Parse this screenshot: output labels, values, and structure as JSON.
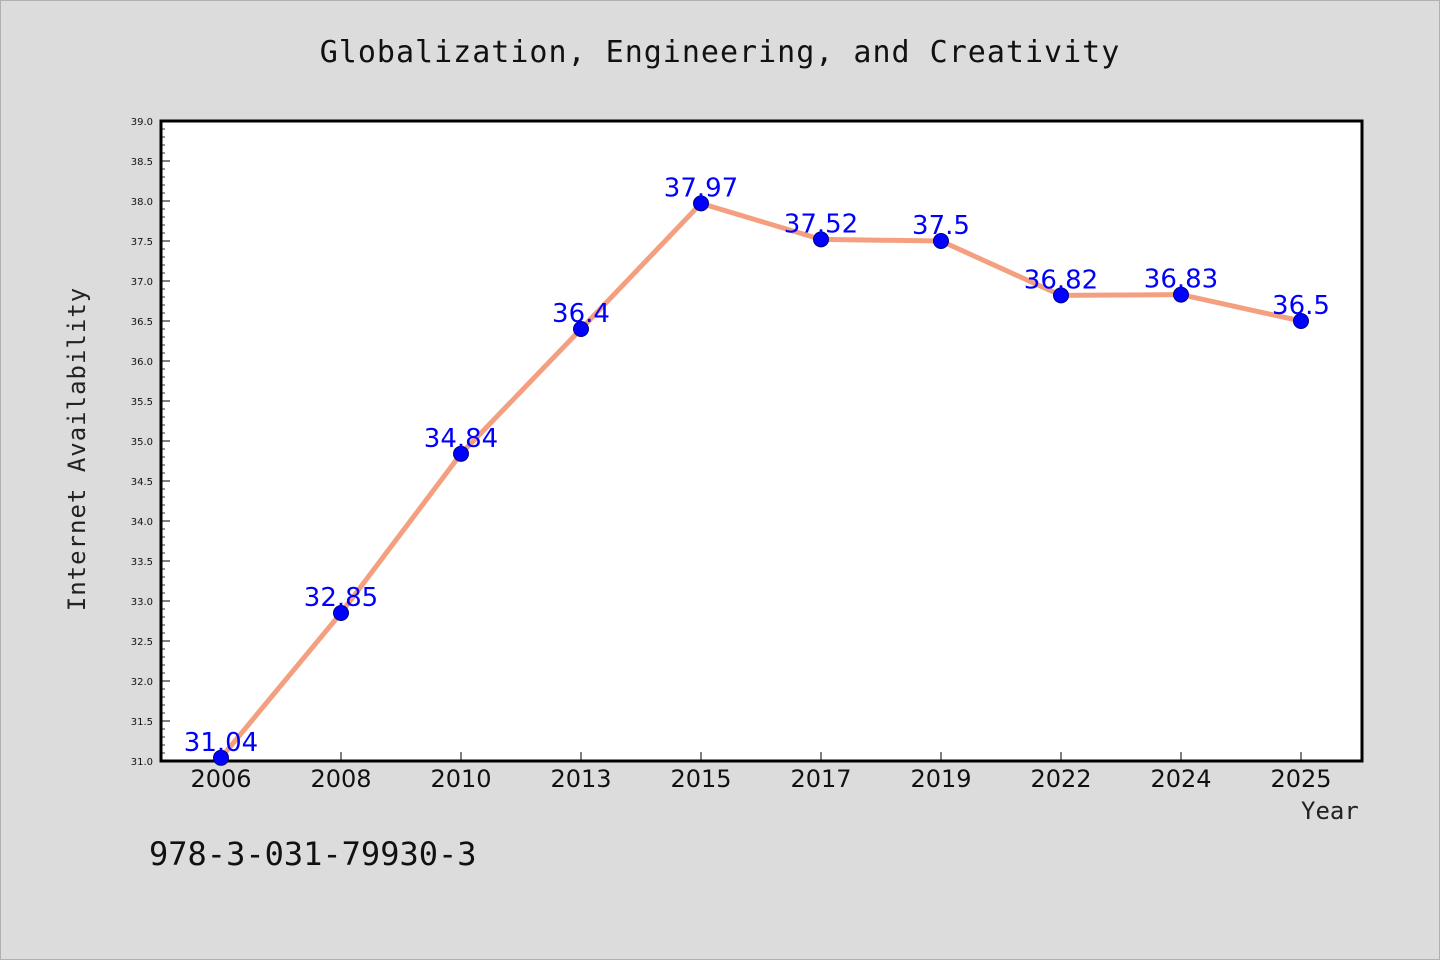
{
  "chart_data": {
    "type": "line",
    "title": "Globalization, Engineering, and Creativity",
    "xlabel": "Year",
    "ylabel": "Internet Availability",
    "categories": [
      "2006",
      "2008",
      "2010",
      "2013",
      "2015",
      "2017",
      "2019",
      "2022",
      "2024",
      "2025"
    ],
    "series": [
      {
        "values": [
          31.04,
          32.85,
          34.84,
          36.4,
          37.97,
          37.52,
          37.5,
          36.82,
          36.83,
          36.5
        ],
        "labels": [
          "31.04",
          "32.85",
          "34.84",
          "36.4",
          "37.97",
          "37.52",
          "37.5",
          "36.82",
          "36.83",
          "36.5"
        ]
      }
    ],
    "ylim": [
      31.0,
      39.0
    ],
    "yticks": [
      "31.0",
      "31.5",
      "32.0",
      "32.5",
      "33.0",
      "33.5",
      "34.0",
      "34.5",
      "35.0",
      "35.5",
      "36.0",
      "36.5",
      "37.0",
      "37.5",
      "38.0",
      "38.5",
      "39.0"
    ],
    "grid": false,
    "colors": {
      "line": "#f4a080",
      "marker": "#0000ff",
      "label": "#0000ff",
      "background": "#dcdcdc",
      "plot_area": "#ffffff"
    }
  },
  "footer": {
    "isbn": "978-3-031-79930-3"
  }
}
